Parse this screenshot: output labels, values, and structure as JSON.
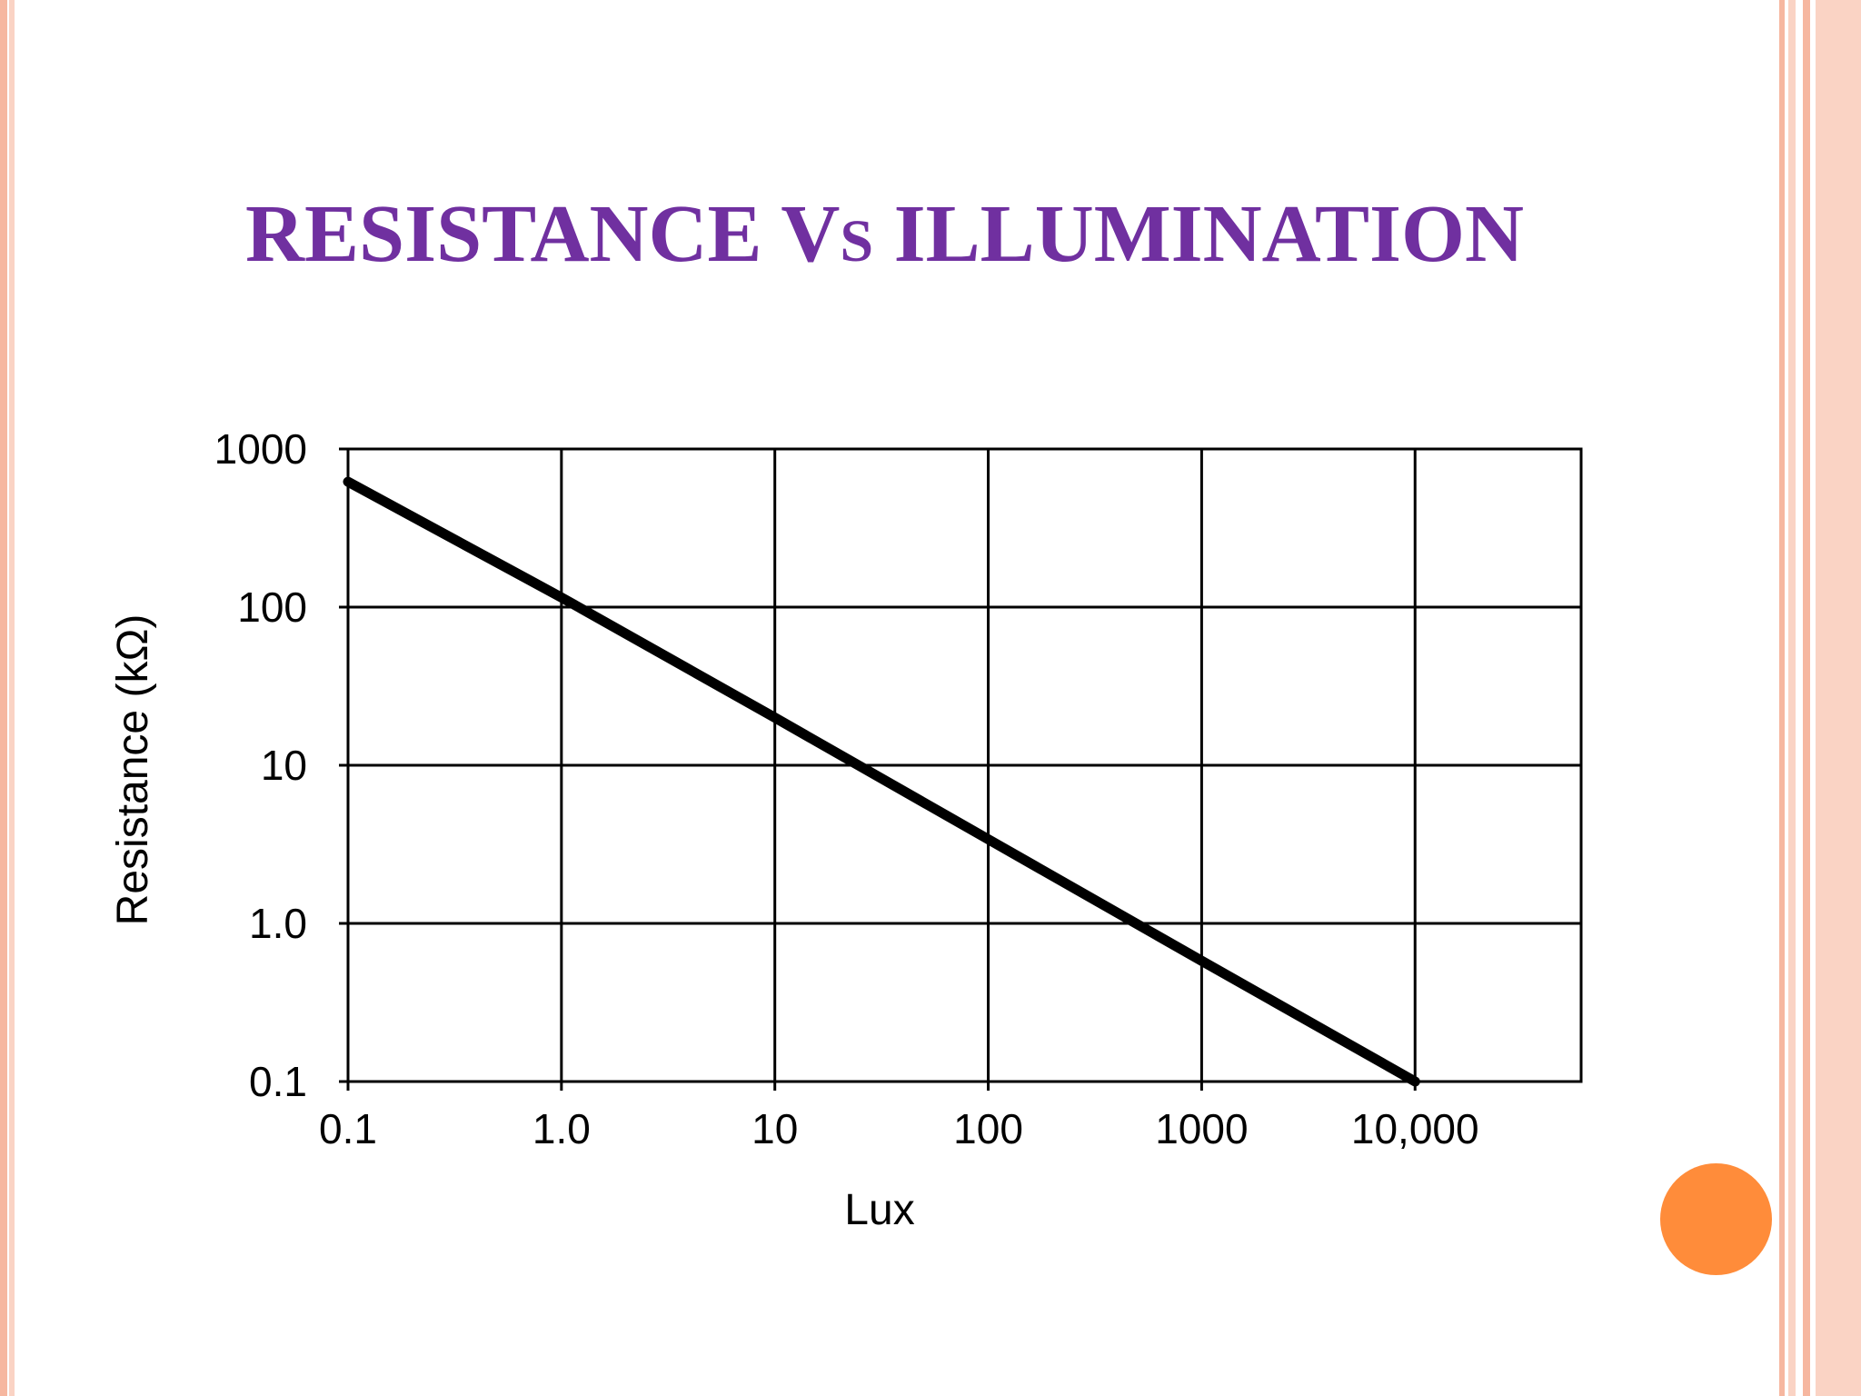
{
  "slide": {
    "title_part1": "RESISTANCE V",
    "title_part2": "S",
    "title_part3": " ILLUMINATION",
    "title_color": "#7030A0",
    "accent_dot_color": "#FF8C3A",
    "border_color": "#F6B7A0",
    "border_light_color": "#FAD3C4"
  },
  "chart_data": {
    "type": "line",
    "xscale": "log",
    "yscale": "log",
    "x_ticks": [
      0.1,
      1,
      10,
      100,
      1000,
      10000
    ],
    "x_tick_labels": [
      "0.1",
      "1.0",
      "10",
      "100",
      "1000",
      "10,000"
    ],
    "y_ticks": [
      0.1,
      1,
      10,
      100,
      1000
    ],
    "y_tick_labels": [
      "0.1",
      "1.0",
      "10",
      "100",
      "1000"
    ],
    "xlabel": "Lux",
    "ylabel": "Resistance (kΩ)",
    "xlim": [
      0.1,
      60000
    ],
    "ylim": [
      0.1,
      1000
    ],
    "grid": true,
    "series": [
      {
        "x": [
          0.1,
          1,
          10,
          100,
          1000,
          10000
        ],
        "y": [
          620,
          115,
          20,
          3.4,
          0.58,
          0.1
        ],
        "color": "#000000"
      }
    ]
  }
}
